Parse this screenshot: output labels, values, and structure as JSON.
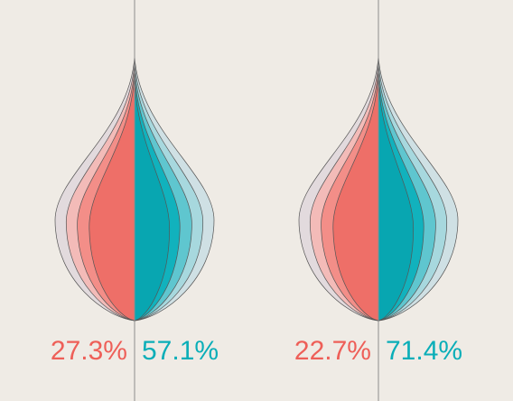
{
  "chart_data": [
    {
      "type": "drop-comparison",
      "series": [
        {
          "color": "#ee5f58",
          "value_label": "27.3%",
          "value": 27.3
        },
        {
          "color": "#0aaeb8",
          "value_label": "57.1%",
          "value": 57.1
        }
      ]
    },
    {
      "type": "drop-comparison",
      "series": [
        {
          "color": "#ee5f58",
          "value_label": "22.7%",
          "value": 22.7
        },
        {
          "color": "#0aaeb8",
          "value_label": "71.4%",
          "value": 71.4
        }
      ]
    }
  ],
  "colors": {
    "background": "#efebe5",
    "divider": "#8d8d8d",
    "layer_outline": "#555555",
    "red_layers": [
      "#e2dadd",
      "#f3bbb8",
      "#f38e88",
      "#ee6f68",
      "#ec5a52"
    ],
    "teal_layers": [
      "#cfe0e4",
      "#a7d8de",
      "#5fc6cf",
      "#11b2bd",
      "#08a6b1"
    ]
  }
}
